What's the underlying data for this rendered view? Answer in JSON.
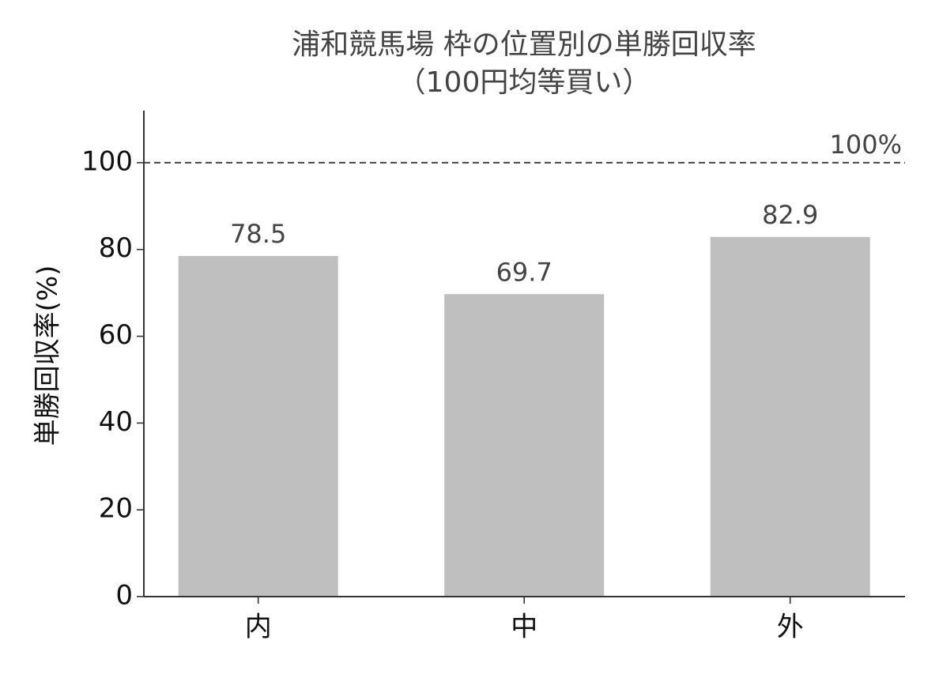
{
  "chart_data": {
    "type": "bar",
    "title": "浦和競馬場 枠の位置別の単勝回収率",
    "subtitle": "（100円均等買い）",
    "y_label": "単勝回収率(%)",
    "categories": [
      "内",
      "中",
      "外"
    ],
    "values": [
      78.5,
      69.7,
      82.9
    ],
    "color": "#bfbfbf",
    "ylim": [
      0,
      112
    ],
    "yticks": [
      0,
      20,
      40,
      60,
      80,
      100
    ],
    "reference_line": {
      "value": 100,
      "label": "100%"
    },
    "grid": false
  }
}
